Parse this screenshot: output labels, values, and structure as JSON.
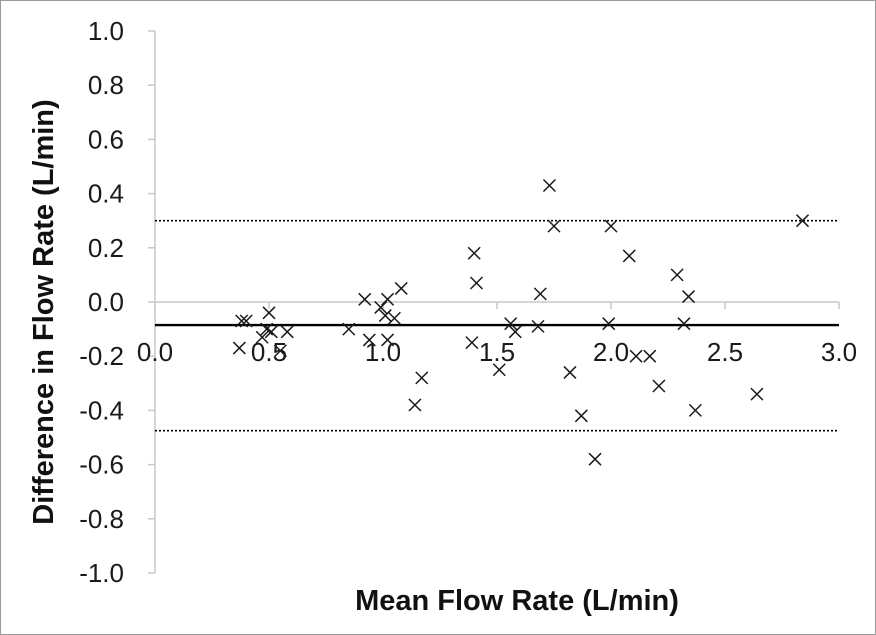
{
  "chart_data": {
    "type": "scatter",
    "xlabel": "Mean Flow Rate (L/min)",
    "ylabel": "Difference in Flow Rate (L/min)",
    "xlim": [
      0.0,
      3.0
    ],
    "ylim": [
      -1.0,
      1.0
    ],
    "x_ticks": [
      "0.0",
      "0.5",
      "1.0",
      "1.5",
      "2.0",
      "2.5",
      "3.0"
    ],
    "y_ticks": [
      "1.0",
      "0.8",
      "0.6",
      "0.4",
      "0.2",
      "0.0",
      "-0.2",
      "-0.4",
      "-0.6",
      "-0.8",
      "-1.0"
    ],
    "marker": "x",
    "grid": false,
    "colors": {
      "points": "#1a1a1a",
      "axis": "#c8c8c8",
      "mean_line": "#000000",
      "limit_lines": "#000000"
    },
    "mean_difference": -0.085,
    "limits_of_agreement": {
      "upper": 0.3,
      "lower": -0.475
    },
    "points": [
      {
        "x": 0.37,
        "y": -0.17
      },
      {
        "x": 0.38,
        "y": -0.07
      },
      {
        "x": 0.4,
        "y": -0.07
      },
      {
        "x": 0.47,
        "y": -0.13
      },
      {
        "x": 0.49,
        "y": -0.1
      },
      {
        "x": 0.5,
        "y": -0.04
      },
      {
        "x": 0.51,
        "y": -0.11
      },
      {
        "x": 0.55,
        "y": -0.18
      },
      {
        "x": 0.58,
        "y": -0.11
      },
      {
        "x": 0.85,
        "y": -0.1
      },
      {
        "x": 0.92,
        "y": 0.01
      },
      {
        "x": 0.94,
        "y": -0.14
      },
      {
        "x": 0.99,
        "y": -0.02
      },
      {
        "x": 1.01,
        "y": -0.05
      },
      {
        "x": 1.02,
        "y": 0.01
      },
      {
        "x": 1.02,
        "y": -0.14
      },
      {
        "x": 1.05,
        "y": -0.06
      },
      {
        "x": 1.08,
        "y": 0.05
      },
      {
        "x": 1.14,
        "y": -0.38
      },
      {
        "x": 1.17,
        "y": -0.28
      },
      {
        "x": 1.39,
        "y": -0.15
      },
      {
        "x": 1.4,
        "y": 0.18
      },
      {
        "x": 1.41,
        "y": 0.07
      },
      {
        "x": 1.51,
        "y": -0.25
      },
      {
        "x": 1.56,
        "y": -0.08
      },
      {
        "x": 1.58,
        "y": -0.11
      },
      {
        "x": 1.68,
        "y": -0.09
      },
      {
        "x": 1.69,
        "y": 0.03
      },
      {
        "x": 1.73,
        "y": 0.43
      },
      {
        "x": 1.75,
        "y": 0.28
      },
      {
        "x": 1.82,
        "y": -0.26
      },
      {
        "x": 1.87,
        "y": -0.42
      },
      {
        "x": 1.93,
        "y": -0.58
      },
      {
        "x": 1.99,
        "y": -0.08
      },
      {
        "x": 2.0,
        "y": 0.28
      },
      {
        "x": 2.08,
        "y": 0.17
      },
      {
        "x": 2.11,
        "y": -0.2
      },
      {
        "x": 2.17,
        "y": -0.2
      },
      {
        "x": 2.21,
        "y": -0.31
      },
      {
        "x": 2.29,
        "y": 0.1
      },
      {
        "x": 2.32,
        "y": -0.08
      },
      {
        "x": 2.34,
        "y": 0.02
      },
      {
        "x": 2.37,
        "y": -0.4
      },
      {
        "x": 2.64,
        "y": -0.34
      },
      {
        "x": 2.84,
        "y": 0.3
      }
    ]
  }
}
